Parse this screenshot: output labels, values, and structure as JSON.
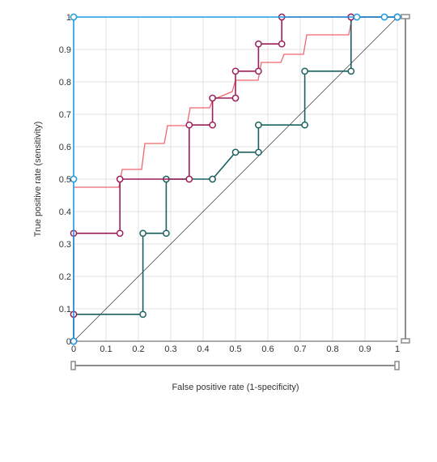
{
  "chart_data": {
    "type": "line",
    "title": "",
    "xlabel": "False positive rate (1-specificity)",
    "ylabel": "True positive rate (sensitivity)",
    "xlim": [
      0,
      1
    ],
    "ylim": [
      0,
      1
    ],
    "grid": true,
    "x_ticks": [
      "0",
      "0.1",
      "0.2",
      "0.3",
      "0.4",
      "0.5",
      "0.6",
      "0.7",
      "0.8",
      "0.9",
      "1"
    ],
    "y_ticks": [
      "0",
      "0.1",
      "0.2",
      "0.3",
      "0.4",
      "0.5",
      "0.6",
      "0.7",
      "0.8",
      "0.9",
      "1"
    ],
    "diagonal_reference": true,
    "series": [
      {
        "color": "#1e9ae0",
        "markers": true,
        "points": [
          [
            0,
            0
          ],
          [
            0,
            0.5
          ],
          [
            0,
            1
          ],
          [
            0.875,
            1
          ],
          [
            0.96,
            1
          ],
          [
            1,
            1
          ]
        ]
      },
      {
        "color": "#9b1f5b",
        "markers": true,
        "points": [
          [
            0,
            0
          ],
          [
            0,
            0.083
          ],
          [
            0,
            0.333
          ],
          [
            0.143,
            0.333
          ],
          [
            0.143,
            0.5
          ],
          [
            0.357,
            0.5
          ],
          [
            0.357,
            0.667
          ],
          [
            0.429,
            0.667
          ],
          [
            0.429,
            0.75
          ],
          [
            0.5,
            0.75
          ],
          [
            0.5,
            0.833
          ],
          [
            0.571,
            0.833
          ],
          [
            0.571,
            0.917
          ],
          [
            0.643,
            0.917
          ],
          [
            0.643,
            1
          ],
          [
            0.857,
            1
          ],
          [
            1,
            1
          ]
        ]
      },
      {
        "color": "#1b6060",
        "markers": true,
        "points": [
          [
            0,
            0
          ],
          [
            0,
            0.083
          ],
          [
            0.214,
            0.083
          ],
          [
            0.214,
            0.333
          ],
          [
            0.286,
            0.333
          ],
          [
            0.286,
            0.5
          ],
          [
            0.429,
            0.5
          ],
          [
            0.5,
            0.583
          ],
          [
            0.571,
            0.583
          ],
          [
            0.571,
            0.667
          ],
          [
            0.714,
            0.667
          ],
          [
            0.714,
            0.833
          ],
          [
            0.857,
            0.833
          ],
          [
            0.857,
            1
          ],
          [
            1,
            1
          ]
        ]
      },
      {
        "color": "#f0666e",
        "markers": false,
        "points": [
          [
            0,
            0.475
          ],
          [
            0.14,
            0.475
          ],
          [
            0.15,
            0.53
          ],
          [
            0.21,
            0.53
          ],
          [
            0.22,
            0.61
          ],
          [
            0.28,
            0.61
          ],
          [
            0.29,
            0.665
          ],
          [
            0.35,
            0.665
          ],
          [
            0.36,
            0.72
          ],
          [
            0.42,
            0.72
          ],
          [
            0.43,
            0.745
          ],
          [
            0.49,
            0.77
          ],
          [
            0.5,
            0.805
          ],
          [
            0.57,
            0.805
          ],
          [
            0.58,
            0.86
          ],
          [
            0.64,
            0.86
          ],
          [
            0.65,
            0.885
          ],
          [
            0.71,
            0.885
          ],
          [
            0.72,
            0.945
          ],
          [
            0.85,
            0.945
          ],
          [
            0.86,
            1
          ],
          [
            1,
            1
          ]
        ]
      }
    ]
  }
}
